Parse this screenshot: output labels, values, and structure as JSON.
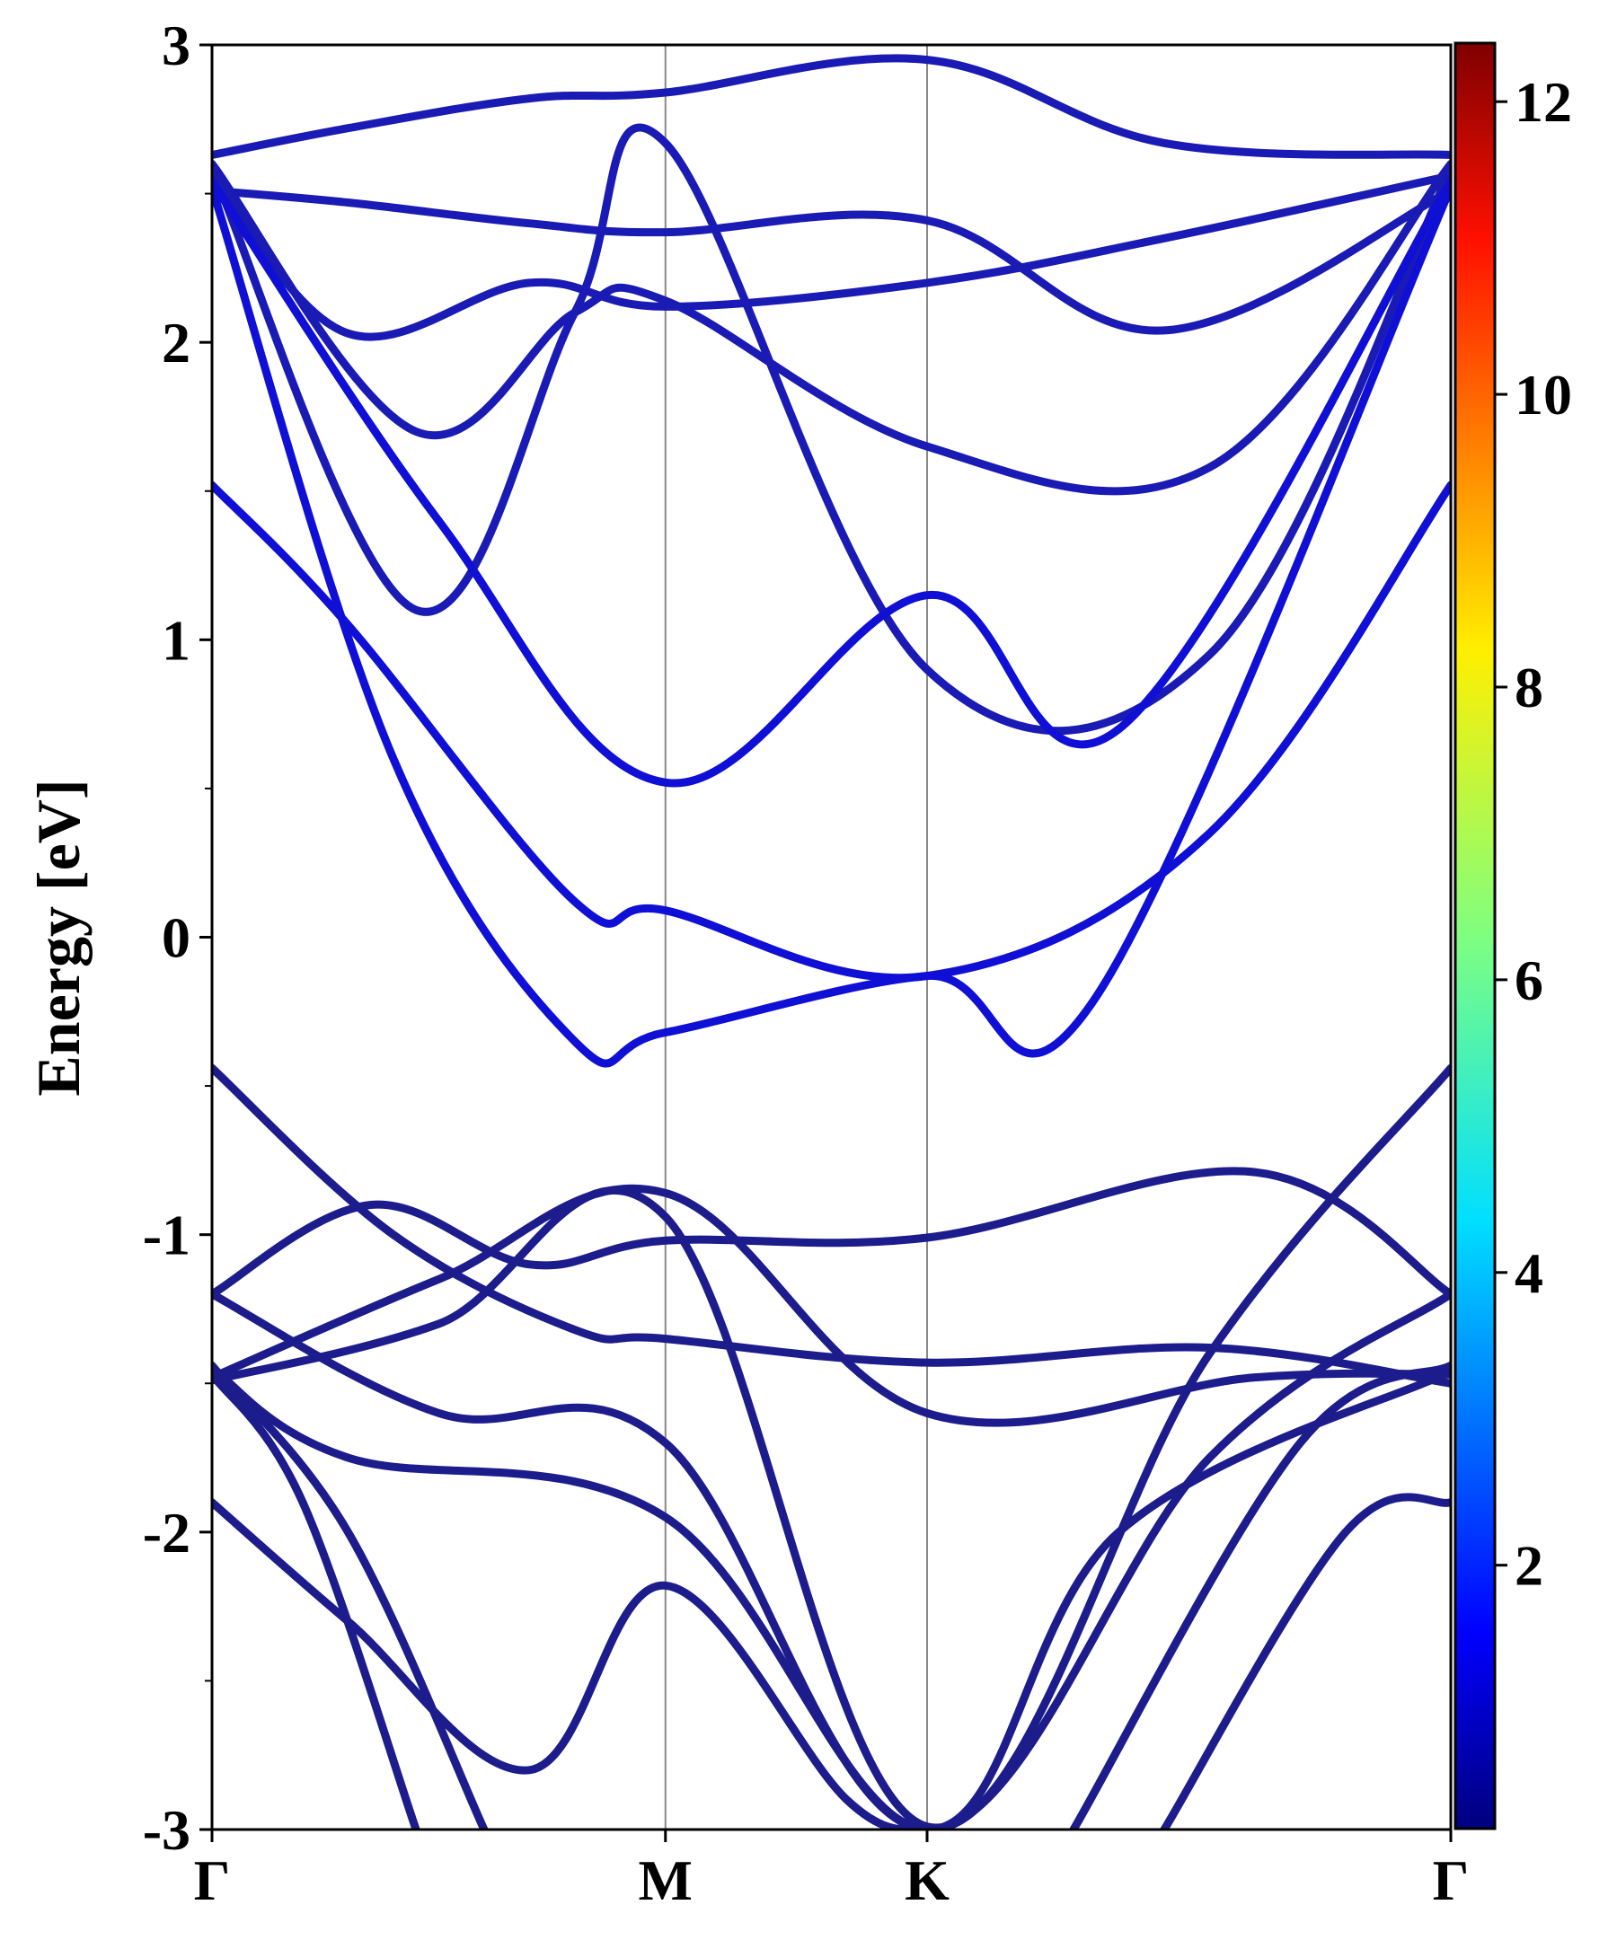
{
  "chart_data": {
    "type": "line",
    "title": "",
    "xlabel": "",
    "ylabel": "Energy [eV]",
    "ylim": [
      -3,
      3
    ],
    "yticks": [
      "-3",
      "-2",
      "-1",
      "0",
      "1",
      "2",
      "3"
    ],
    "ytick_values": [
      -3,
      -2,
      -1,
      0,
      1,
      2,
      3
    ],
    "xlim": [
      0,
      2.732
    ],
    "kpath": [
      {
        "label": "Γ",
        "k": 0.0
      },
      {
        "label": "M",
        "k": 1.0
      },
      {
        "label": "K",
        "k": 1.577
      },
      {
        "label": "Γ",
        "k": 2.732
      }
    ],
    "colorbar": {
      "range": [
        0.2,
        12.4
      ],
      "ticks": [
        "2",
        "4",
        "6",
        "8",
        "10",
        "12"
      ],
      "tick_values": [
        2,
        4,
        6,
        8,
        10,
        12
      ],
      "colormap": "jet"
    },
    "line_colors": {
      "dark": "#1c1c8c",
      "mid": "#1a1ab5",
      "bright": "#0f0fd6"
    },
    "series": [
      {
        "name": "band-1",
        "tone": "mid",
        "x": [
          0,
          0.3,
          0.7,
          1.0,
          1.577,
          2.1,
          2.732
        ],
        "y": [
          2.63,
          2.72,
          2.82,
          2.84,
          2.95,
          2.67,
          2.63
        ]
      },
      {
        "name": "band-2",
        "tone": "mid",
        "x": [
          0,
          0.3,
          0.7,
          1.0,
          1.577,
          2.1,
          2.732
        ],
        "y": [
          2.51,
          2.47,
          2.4,
          2.37,
          2.41,
          2.04,
          2.51
        ]
      },
      {
        "name": "band-3",
        "tone": "mid",
        "x": [
          0,
          0.3,
          0.7,
          1.0,
          1.577,
          2.1,
          2.732
        ],
        "y": [
          2.56,
          2.03,
          2.2,
          2.12,
          2.2,
          2.35,
          2.56
        ]
      },
      {
        "name": "band-4",
        "tone": "mid",
        "x": [
          0,
          0.45,
          0.8,
          1.0,
          1.577,
          2.2,
          2.732
        ],
        "y": [
          2.6,
          1.7,
          2.1,
          2.14,
          1.65,
          1.58,
          2.6
        ]
      },
      {
        "name": "band-5",
        "tone": "mid",
        "x": [
          0,
          0.45,
          0.8,
          1.0,
          1.577,
          2.2,
          2.732
        ],
        "y": [
          2.58,
          1.1,
          2.1,
          2.67,
          0.9,
          0.95,
          2.58
        ]
      },
      {
        "name": "band-6",
        "tone": "bright",
        "x": [
          0,
          0.5,
          1.0,
          1.577,
          2.0,
          2.732
        ],
        "y": [
          2.54,
          1.4,
          0.52,
          1.15,
          0.7,
          2.54
        ]
      },
      {
        "name": "band-7",
        "tone": "bright",
        "x": [
          0,
          0.3,
          0.8,
          1.0,
          1.577,
          2.2,
          2.732
        ],
        "y": [
          1.52,
          1.05,
          0.12,
          0.09,
          -0.13,
          0.35,
          1.52
        ]
      },
      {
        "name": "band-8",
        "tone": "bright",
        "x": [
          0,
          0.4,
          0.8,
          1.0,
          1.577,
          1.95,
          2.732
        ],
        "y": [
          2.52,
          0.6,
          -0.35,
          -0.32,
          -0.13,
          -0.2,
          2.52
        ]
      },
      {
        "name": "band-9",
        "tone": "dark",
        "x": [
          0,
          0.35,
          0.7,
          1.0,
          1.577,
          2.3,
          2.732
        ],
        "y": [
          -1.2,
          -0.9,
          -1.1,
          -1.02,
          -1.01,
          -0.79,
          -1.2
        ]
      },
      {
        "name": "band-10",
        "tone": "dark",
        "x": [
          0,
          0.4,
          0.8,
          1.0,
          1.577,
          2.2,
          2.732
        ],
        "y": [
          -0.44,
          -1.0,
          -1.32,
          -1.35,
          -1.43,
          -1.38,
          -1.5
        ]
      },
      {
        "name": "band-11",
        "tone": "dark",
        "x": [
          0,
          0.5,
          1.0,
          1.577,
          2.3,
          2.732
        ],
        "y": [
          -1.48,
          -1.15,
          -0.86,
          -1.6,
          -1.48,
          -1.47
        ]
      },
      {
        "name": "band-12",
        "tone": "dark",
        "x": [
          0,
          0.5,
          1.0,
          1.577,
          2.2,
          2.732
        ],
        "y": [
          -1.49,
          -1.3,
          -0.94,
          -2.99,
          -1.4,
          -0.44
        ]
      },
      {
        "name": "band-13",
        "tone": "dark",
        "x": [
          0,
          0.5,
          1.0,
          1.577,
          2.2,
          2.732
        ],
        "y": [
          -1.2,
          -1.6,
          -1.7,
          -3.0,
          -1.75,
          -1.2
        ]
      },
      {
        "name": "band-14",
        "tone": "dark",
        "x": [
          0,
          0.3,
          1.0,
          1.577,
          2.0,
          2.732
        ],
        "y": [
          -1.45,
          -1.75,
          -1.95,
          -3.0,
          -2.0,
          -1.46
        ]
      },
      {
        "name": "band-15",
        "tone": "dark",
        "x": [
          0,
          0.3,
          0.7,
          1.0,
          1.4,
          1.577
        ],
        "y": [
          -1.9,
          -2.3,
          -2.8,
          -2.18,
          -2.9,
          -3.0
        ]
      },
      {
        "name": "band-16",
        "tone": "dark",
        "x": [
          0,
          0.2,
          0.45
        ],
        "y": [
          -1.47,
          -1.9,
          -3.0
        ]
      },
      {
        "name": "band-17",
        "tone": "dark",
        "x": [
          0,
          0.3,
          0.6
        ],
        "y": [
          -1.44,
          -2.0,
          -3.0
        ]
      },
      {
        "name": "band-18",
        "tone": "dark",
        "x": [
          2.1,
          2.5,
          2.732
        ],
        "y": [
          -3.0,
          -2.0,
          -1.9
        ]
      },
      {
        "name": "band-19",
        "tone": "dark",
        "x": [
          1.9,
          2.4,
          2.732
        ],
        "y": [
          -3.0,
          -1.7,
          -1.44
        ]
      }
    ]
  }
}
